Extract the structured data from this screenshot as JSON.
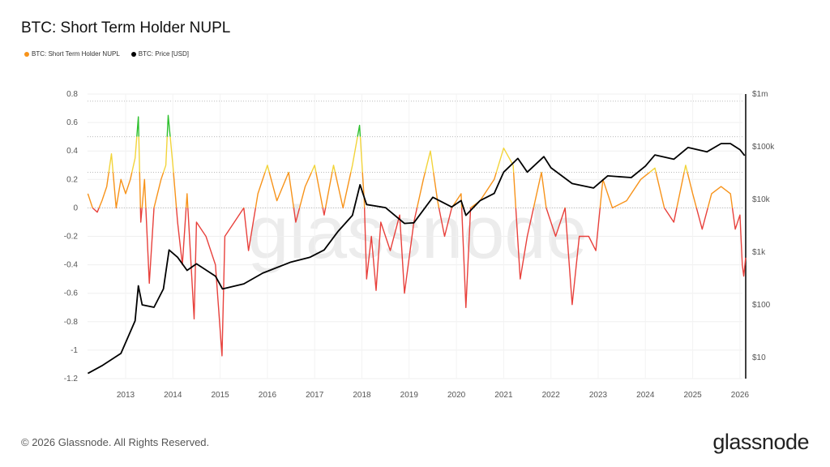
{
  "title": "BTC: Short Term Holder NUPL",
  "footer": "© 2026 Glassnode. All Rights Reserved.",
  "brand": "glassnode",
  "watermark": "glassnode",
  "chart_data": {
    "type": "line",
    "title": "BTC: Short Term Holder NUPL",
    "legend_position": "top-left",
    "grid": true,
    "x_ticks": [
      "2013",
      "2014",
      "2015",
      "2016",
      "2017",
      "2018",
      "2019",
      "2020",
      "2021",
      "2022",
      "2023",
      "2024",
      "2025",
      "2026"
    ],
    "xlim": [
      2012.2,
      2026.15
    ],
    "y_left": {
      "ticks": [
        "0.8",
        "0.6",
        "0.4",
        "0.2",
        "0",
        "-0.2",
        "-0.4",
        "-0.6",
        "-0.8",
        "-1",
        "-1.2"
      ],
      "ylim": [
        -1.2,
        0.8
      ]
    },
    "y_right": {
      "scale": "log",
      "ticks": [
        "$1m",
        "$100k",
        "$10k",
        "$1k",
        "$100",
        "$10"
      ],
      "tick_values": [
        1000000,
        100000,
        10000,
        1000,
        100,
        10
      ]
    },
    "reference_lines": [
      0.75,
      0.5,
      0.25,
      0
    ],
    "color_bands": [
      {
        "above": 0.5,
        "color": "#2ec02e"
      },
      {
        "above": 0.25,
        "color": "#f2d43a"
      },
      {
        "above": 0,
        "color": "#f7931a"
      },
      {
        "above": -2,
        "color": "#e8413c"
      }
    ],
    "series": [
      {
        "name": "BTC: Short Term Holder NUPL",
        "color": "#f7931a",
        "axis": "left",
        "x": [
          2012.2,
          2012.3,
          2012.4,
          2012.5,
          2012.6,
          2012.7,
          2012.8,
          2012.9,
          2013.0,
          2013.1,
          2013.2,
          2013.27,
          2013.32,
          2013.4,
          2013.5,
          2013.6,
          2013.75,
          2013.85,
          2013.9,
          2014.0,
          2014.1,
          2014.2,
          2014.3,
          2014.45,
          2014.5,
          2014.7,
          2014.9,
          2015.04,
          2015.1,
          2015.3,
          2015.5,
          2015.6,
          2015.8,
          2016.0,
          2016.2,
          2016.45,
          2016.6,
          2016.8,
          2017.0,
          2017.2,
          2017.4,
          2017.6,
          2017.8,
          2017.95,
          2018.05,
          2018.1,
          2018.2,
          2018.3,
          2018.4,
          2018.6,
          2018.8,
          2018.9,
          2019.1,
          2019.3,
          2019.45,
          2019.6,
          2019.75,
          2019.9,
          2020.1,
          2020.2,
          2020.3,
          2020.5,
          2020.8,
          2021.0,
          2021.2,
          2021.35,
          2021.5,
          2021.8,
          2021.9,
          2022.1,
          2022.3,
          2022.45,
          2022.6,
          2022.8,
          2022.95,
          2023.1,
          2023.3,
          2023.6,
          2023.9,
          2024.2,
          2024.4,
          2024.6,
          2024.85,
          2025.0,
          2025.2,
          2025.4,
          2025.6,
          2025.8,
          2025.9,
          2026.0,
          2026.05,
          2026.08,
          2026.12
        ],
        "values": [
          0.1,
          0.0,
          -0.03,
          0.05,
          0.15,
          0.38,
          0.0,
          0.2,
          0.1,
          0.2,
          0.35,
          0.64,
          -0.1,
          0.2,
          -0.53,
          0.0,
          0.2,
          0.3,
          0.65,
          0.3,
          -0.1,
          -0.4,
          0.1,
          -0.78,
          -0.1,
          -0.2,
          -0.4,
          -1.04,
          -0.2,
          -0.1,
          0.0,
          -0.3,
          0.1,
          0.3,
          0.05,
          0.25,
          -0.1,
          0.15,
          0.3,
          -0.05,
          0.3,
          0.0,
          0.3,
          0.58,
          0.05,
          -0.5,
          -0.2,
          -0.58,
          -0.1,
          -0.3,
          -0.05,
          -0.6,
          -0.1,
          0.2,
          0.4,
          0.05,
          -0.2,
          0.0,
          0.1,
          -0.7,
          0.0,
          0.05,
          0.2,
          0.42,
          0.3,
          -0.5,
          -0.2,
          0.25,
          0.0,
          -0.2,
          0.0,
          -0.68,
          -0.2,
          -0.2,
          -0.3,
          0.2,
          0.0,
          0.05,
          0.2,
          0.28,
          0.0,
          -0.1,
          0.3,
          0.1,
          -0.15,
          0.1,
          0.15,
          0.1,
          -0.15,
          -0.05,
          -0.4,
          -0.48,
          -0.35
        ]
      },
      {
        "name": "BTC: Price [USD]",
        "color": "#000000",
        "axis": "right",
        "x": [
          2012.2,
          2012.5,
          2012.9,
          2013.2,
          2013.27,
          2013.35,
          2013.6,
          2013.8,
          2013.92,
          2014.1,
          2014.3,
          2014.5,
          2014.9,
          2015.05,
          2015.5,
          2015.9,
          2016.5,
          2016.9,
          2017.2,
          2017.5,
          2017.8,
          2017.96,
          2018.1,
          2018.5,
          2018.9,
          2019.1,
          2019.5,
          2019.9,
          2020.1,
          2020.2,
          2020.5,
          2020.8,
          2021.0,
          2021.3,
          2021.5,
          2021.85,
          2022.0,
          2022.45,
          2022.9,
          2023.2,
          2023.7,
          2024.0,
          2024.2,
          2024.6,
          2024.9,
          2025.3,
          2025.6,
          2025.8,
          2026.0,
          2026.1
        ],
        "values": [
          5,
          7,
          12,
          50,
          230,
          100,
          90,
          200,
          1100,
          800,
          450,
          600,
          350,
          200,
          250,
          400,
          650,
          800,
          1100,
          2500,
          5000,
          19000,
          8000,
          7000,
          3500,
          3600,
          11000,
          7200,
          9500,
          5000,
          9500,
          13000,
          33000,
          60000,
          33000,
          65000,
          40000,
          20000,
          16500,
          28000,
          26000,
          43000,
          70000,
          58000,
          97000,
          80000,
          115000,
          115000,
          88000,
          68000
        ]
      }
    ]
  }
}
